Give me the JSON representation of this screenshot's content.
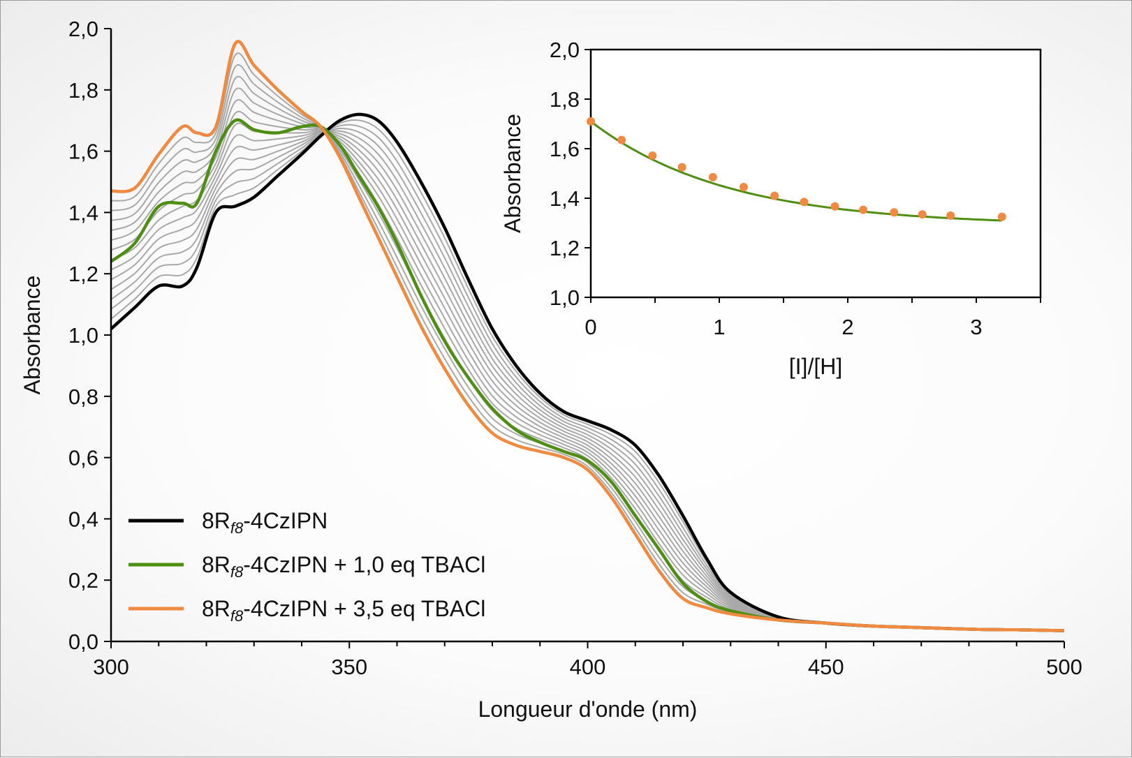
{
  "chart_data": [
    {
      "type": "line",
      "xlabel": "Longueur d'onde (nm)",
      "ylabel": "Absorbance",
      "xlim": [
        300,
        500
      ],
      "ylim": [
        0.0,
        2.0
      ],
      "x_ticks": [
        "300",
        "350",
        "400",
        "450",
        "500"
      ],
      "y_ticks": [
        "0,0",
        "0,2",
        "0,4",
        "0,6",
        "0,8",
        "1,0",
        "1,2",
        "1,4",
        "1,6",
        "1,8",
        "2,0"
      ],
      "grid": false,
      "legend_position": "bottom-left",
      "x": [
        300,
        305,
        310,
        315,
        318,
        322,
        326,
        330,
        335,
        340,
        344,
        348,
        352,
        356,
        360,
        365,
        370,
        375,
        380,
        385,
        390,
        395,
        400,
        405,
        410,
        415,
        420,
        425,
        430,
        440,
        450,
        460,
        470,
        480,
        490,
        500
      ],
      "series": [
        {
          "name_parts": {
            "pre": "8R",
            "sub": "f8",
            "post": "-4CzIPN"
          },
          "color": "#000000",
          "values": [
            1.02,
            1.09,
            1.16,
            1.16,
            1.22,
            1.4,
            1.42,
            1.45,
            1.52,
            1.59,
            1.65,
            1.7,
            1.72,
            1.7,
            1.63,
            1.5,
            1.35,
            1.18,
            1.02,
            0.9,
            0.81,
            0.75,
            0.72,
            0.69,
            0.64,
            0.54,
            0.41,
            0.27,
            0.16,
            0.08,
            0.06,
            0.05,
            0.045,
            0.04,
            0.038,
            0.035
          ]
        },
        {
          "name_parts": {
            "pre": "8R",
            "sub": "f8",
            "post": "-4CzIPN + 1,0 eq TBACl"
          },
          "color": "#4e8e12",
          "values": [
            1.24,
            1.3,
            1.42,
            1.43,
            1.43,
            1.6,
            1.7,
            1.67,
            1.66,
            1.68,
            1.68,
            1.62,
            1.52,
            1.42,
            1.3,
            1.13,
            0.98,
            0.86,
            0.76,
            0.69,
            0.65,
            0.62,
            0.59,
            0.52,
            0.41,
            0.3,
            0.19,
            0.13,
            0.1,
            0.07,
            0.06,
            0.05,
            0.045,
            0.04,
            0.038,
            0.035
          ]
        },
        {
          "name_parts": {
            "pre": "8R",
            "sub": "f8",
            "post": "-4CzIPN + 3,5 eq TBACl"
          },
          "color": "#ef8a40",
          "values": [
            1.47,
            1.48,
            1.59,
            1.68,
            1.66,
            1.68,
            1.95,
            1.88,
            1.8,
            1.73,
            1.68,
            1.58,
            1.45,
            1.32,
            1.19,
            1.03,
            0.89,
            0.77,
            0.68,
            0.64,
            0.62,
            0.6,
            0.56,
            0.47,
            0.35,
            0.23,
            0.14,
            0.11,
            0.09,
            0.07,
            0.06,
            0.05,
            0.045,
            0.04,
            0.038,
            0.035
          ]
        }
      ],
      "intermediate_curves": {
        "count": 13,
        "color": "#a8a8a8"
      }
    },
    {
      "type": "scatter",
      "xlabel": "[I]/[H]",
      "ylabel": "Absorbance",
      "xlim": [
        0,
        3.5
      ],
      "ylim": [
        1.0,
        2.0
      ],
      "x_ticks": [
        "0",
        "1",
        "2",
        "3"
      ],
      "y_ticks": [
        "1,0",
        "1,2",
        "1,4",
        "1,6",
        "1,8",
        "2,0"
      ],
      "grid": false,
      "points": {
        "color": "#ef8a40",
        "x": [
          0,
          0.24,
          0.48,
          0.71,
          0.95,
          1.19,
          1.43,
          1.66,
          1.9,
          2.12,
          2.36,
          2.58,
          2.8,
          3.2
        ],
        "y": [
          1.71,
          1.635,
          1.572,
          1.525,
          1.485,
          1.445,
          1.41,
          1.385,
          1.367,
          1.353,
          1.343,
          1.335,
          1.33,
          1.325
        ]
      },
      "fit": {
        "color": "#4e8e12",
        "a0": 1.71,
        "ainf": 1.29,
        "k": 0.95
      }
    }
  ]
}
